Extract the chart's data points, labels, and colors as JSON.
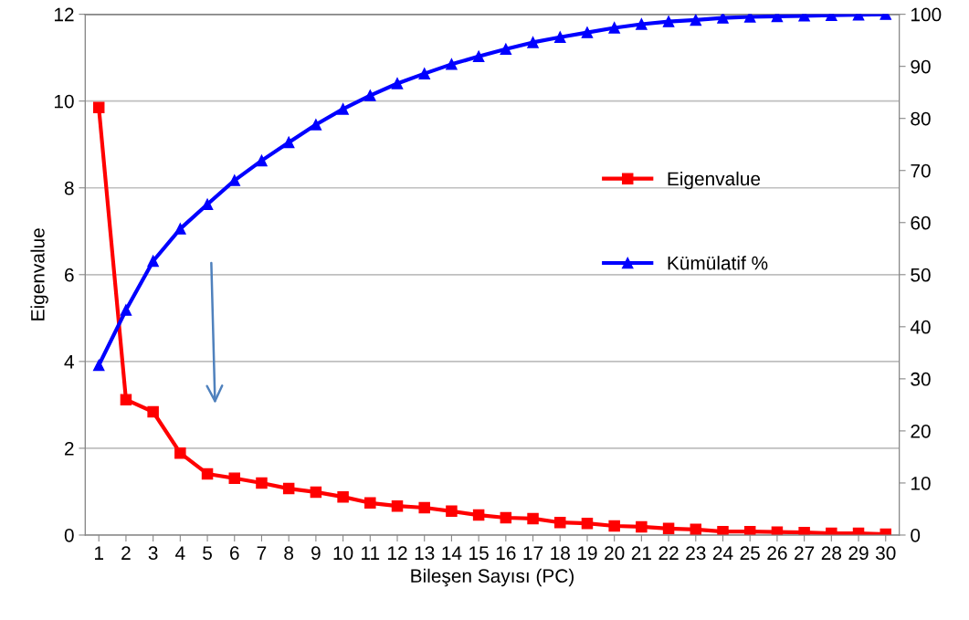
{
  "chart_data": {
    "type": "line",
    "xlabel": "Bileşen Sayısı (PC)",
    "ylabel": "Eigenvalue",
    "categories": [
      "1",
      "2",
      "3",
      "4",
      "5",
      "6",
      "7",
      "8",
      "9",
      "10",
      "11",
      "12",
      "13",
      "14",
      "15",
      "16",
      "17",
      "18",
      "19",
      "20",
      "21",
      "22",
      "23",
      "24",
      "25",
      "26",
      "27",
      "28",
      "29",
      "30"
    ],
    "series": [
      {
        "name": "Eigenvalue",
        "color": "#ff0000",
        "marker": "square",
        "values": [
          9.85,
          3.12,
          2.84,
          1.89,
          1.41,
          1.31,
          1.2,
          1.07,
          0.99,
          0.88,
          0.74,
          0.67,
          0.63,
          0.55,
          0.46,
          0.4,
          0.38,
          0.29,
          0.27,
          0.21,
          0.19,
          0.15,
          0.13,
          0.08,
          0.08,
          0.07,
          0.06,
          0.04,
          0.04,
          0.02
        ]
      },
      {
        "name": "Kümülatif %",
        "color": "#0000ff",
        "marker": "triangle",
        "axis": "y2",
        "values": [
          32.6,
          43.2,
          52.6,
          58.8,
          63.5,
          68.1,
          71.9,
          75.4,
          78.8,
          81.8,
          84.4,
          86.7,
          88.6,
          90.4,
          91.9,
          93.3,
          94.6,
          95.6,
          96.5,
          97.4,
          98.1,
          98.6,
          98.9,
          99.3,
          99.5,
          99.6,
          99.7,
          99.8,
          99.9,
          100
        ]
      }
    ],
    "ylim": [
      0,
      12
    ],
    "yticks": [
      0,
      2,
      4,
      6,
      8,
      10,
      12
    ],
    "y2lim": [
      0,
      100
    ],
    "y2ticks": [
      0,
      10,
      20,
      30,
      40,
      50,
      60,
      70,
      80,
      90,
      100
    ],
    "grid": "y",
    "legend": "right",
    "line_style": "solid"
  }
}
